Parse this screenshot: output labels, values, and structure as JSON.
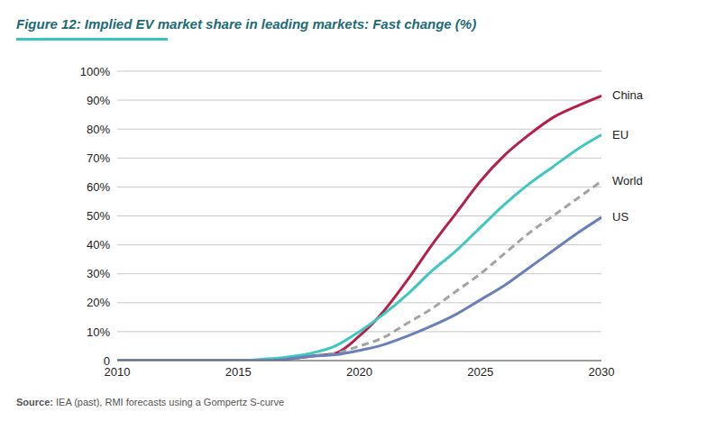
{
  "chart_data": {
    "type": "line",
    "title": "Figure 12: Implied EV market share in leading markets: Fast change (%)",
    "source": "Source: IEA (past), RMI forecasts using a Gompertz S-curve",
    "x": [
      2010,
      2011,
      2012,
      2013,
      2014,
      2015,
      2016,
      2017,
      2018,
      2019,
      2020,
      2021,
      2022,
      2023,
      2024,
      2025,
      2026,
      2027,
      2028,
      2029,
      2030
    ],
    "xlim": [
      2010,
      2030
    ],
    "xticks": [
      2010,
      2015,
      2020,
      2025,
      2030
    ],
    "ylim": [
      0,
      100
    ],
    "yticks": [
      0,
      {
        "value": 10,
        "label": "10%"
      },
      {
        "value": 20,
        "label": "20%"
      },
      {
        "value": 30,
        "label": "30%"
      },
      {
        "value": 40,
        "label": "40%"
      },
      {
        "value": 50,
        "label": "50%"
      },
      {
        "value": 60,
        "label": "60%"
      },
      {
        "value": 70,
        "label": "70%"
      },
      {
        "value": 80,
        "label": "80%"
      },
      {
        "value": 90,
        "label": "90%"
      },
      {
        "value": 100,
        "label": "100%"
      }
    ],
    "grid": true,
    "series": [
      {
        "name": "China",
        "color": "#b5204a",
        "line_style": "solid",
        "values": [
          0,
          0,
          0,
          0,
          0,
          0,
          0,
          0.5,
          1.5,
          2.5,
          8.5,
          17,
          28,
          40,
          51,
          62,
          71,
          78,
          84,
          88,
          91.5
        ]
      },
      {
        "name": "EU",
        "color": "#3fc8c0",
        "line_style": "solid",
        "values": [
          0,
          0,
          0,
          0,
          0,
          0,
          0.5,
          1.2,
          2.5,
          5,
          10,
          16,
          23,
          31,
          38,
          46,
          54,
          61,
          67,
          73,
          78
        ]
      },
      {
        "name": "World",
        "color": "#a3a3a3",
        "line_style": "dashed",
        "values": [
          0,
          0,
          0,
          0,
          0,
          0,
          0,
          0.5,
          1.5,
          2.5,
          5,
          8,
          13,
          18,
          24,
          30,
          37,
          44,
          50,
          56,
          62
        ]
      },
      {
        "name": "US",
        "color": "#6b7fb8",
        "line_style": "solid",
        "values": [
          0,
          0,
          0,
          0,
          0,
          0,
          0,
          0.5,
          1.5,
          2,
          3.5,
          5.5,
          8.5,
          12,
          16,
          21,
          26,
          32,
          38,
          44,
          49.5
        ]
      }
    ]
  }
}
